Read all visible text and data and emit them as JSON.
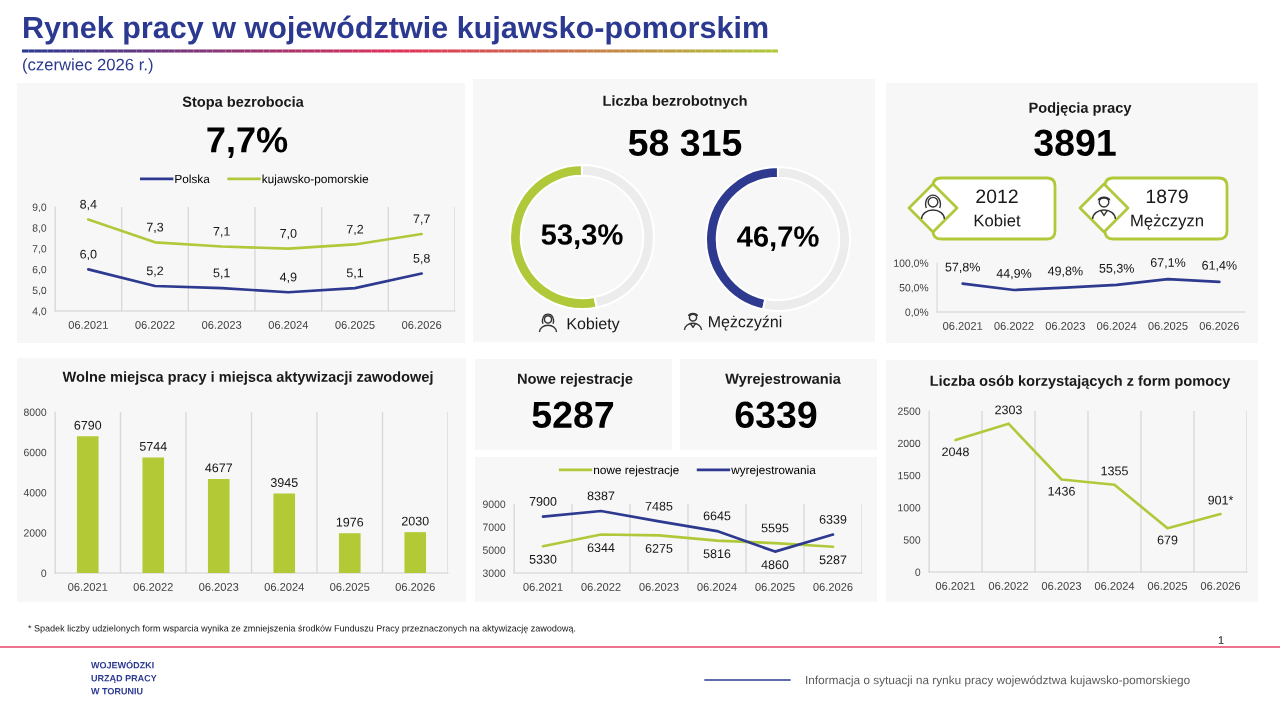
{
  "chart_data": [
    {
      "type": "other",
      "title": "Rynek pracy w województwie kujawsko-pomorskim",
      "subtitle": "(czerwiec 2026 r.)",
      "annotations": [
        "* Spadek liczby udzielonych form wsparcia wynika ze zmniejszenia środków Funduszu Pracy przeznaczonych na aktywizację zawodową.",
        "1",
        "WOJEWÓDZKI",
        "URZĄD PRACY",
        "W TORUNIU",
        "Informacja o sytuacji na rynku pracy województwa kujawsko-pomorskiego"
      ]
    },
    {
      "type": "line",
      "title": "Stopa bezrobocia",
      "subtitle": "7,7%",
      "categories": [
        "06.2021",
        "06.2022",
        "06.2023",
        "06.2024",
        "06.2025",
        "06.2026"
      ],
      "series": [
        {
          "name": "Polska",
          "color": "#2e3a8f",
          "values": [
            6.0,
            5.2,
            5.1,
            4.9,
            5.1,
            5.8
          ],
          "value_labels": [
            "6,0",
            "5,2",
            "5,1",
            "4,9",
            "5,1",
            "5,8"
          ]
        },
        {
          "name": "kujawsko-pomorskie",
          "color": "#b0c93a",
          "values": [
            8.4,
            7.3,
            7.1,
            7.0,
            7.2,
            7.7
          ],
          "value_labels": [
            "8,4",
            "7,3",
            "7,1",
            "7,0",
            "7,2",
            "7,7"
          ]
        }
      ],
      "ylim": [
        4,
        9
      ],
      "yticks": [
        {
          "value": 4,
          "label": "4,0"
        },
        {
          "value": 5,
          "label": "5,0"
        },
        {
          "value": 6,
          "label": "6,0"
        },
        {
          "value": 7,
          "label": "7,0"
        },
        {
          "value": 8,
          "label": "8,0"
        },
        {
          "value": 9,
          "label": "9,0"
        }
      ],
      "grid": "x",
      "legend": "top"
    },
    {
      "type": "other",
      "title": "Liczba bezrobotnych",
      "subtitle": "58 315"
    },
    {
      "type": "donut",
      "categories": [
        "Kobiety",
        null
      ],
      "values": [
        53.3,
        46.7
      ],
      "colors": [
        "#b0c93a",
        "#ececec"
      ],
      "value_labels": [
        "53,3%",
        null
      ]
    },
    {
      "type": "donut",
      "categories": [
        "Mężczyźni",
        null
      ],
      "values": [
        46.7,
        53.3
      ],
      "colors": [
        "#2e3a8f",
        "#ececec"
      ],
      "value_labels": [
        "46,7%",
        null
      ]
    },
    {
      "type": "line",
      "title": "Podjęcia pracy",
      "subtitle": "3891",
      "annotations": [
        "2012",
        "Kobiet",
        "1879",
        "Mężczyzn"
      ],
      "categories": [
        "06.2021",
        "06.2022",
        "06.2023",
        "06.2024",
        "06.2025",
        "06.2026"
      ],
      "values": [
        57.8,
        44.9,
        49.8,
        55.3,
        67.1,
        61.4
      ],
      "value_labels": [
        "57,8%",
        "44,9%",
        "49,8%",
        "55,3%",
        "67,1%",
        "61,4%"
      ],
      "color": "#2e3a8f",
      "ylim": [
        0,
        100
      ],
      "yticks": [
        {
          "value": 0,
          "label": "0,0%"
        },
        {
          "value": 50,
          "label": "50,0%"
        },
        {
          "value": 100,
          "label": "100,0%"
        }
      ]
    },
    {
      "type": "bar",
      "title": "Wolne miejsca pracy i miejsca aktywizacji zawodowej",
      "categories": [
        "06.2021",
        "06.2022",
        "06.2023",
        "06.2024",
        "06.2025",
        "06.2026"
      ],
      "values": [
        6790,
        5744,
        4677,
        3945,
        1976,
        2030
      ],
      "color": "#b3c935",
      "ylim": [
        0,
        8000
      ],
      "yticks": [
        0,
        2000,
        4000,
        6000,
        8000
      ],
      "grid": "x",
      "data_labels": true
    },
    {
      "type": "other",
      "title": "Nowe rejestracje",
      "subtitle": "5287"
    },
    {
      "type": "other",
      "title": "Wyrejestrowania",
      "subtitle": "6339"
    },
    {
      "type": "line",
      "categories": [
        "06.2021",
        "06.2022",
        "06.2023",
        "06.2024",
        "06.2025",
        "06.2026"
      ],
      "series": [
        {
          "name": "nowe rejestracje",
          "color": "#b0c93a",
          "values": [
            5330,
            6344,
            6275,
            5816,
            5595,
            5287
          ]
        },
        {
          "name": "wyrejestrowania",
          "color": "#2e3a8f",
          "values": [
            7900,
            8387,
            7485,
            6645,
            4860,
            6339
          ]
        }
      ],
      "ylim": [
        3000,
        9000
      ],
      "yticks": [
        3000,
        5000,
        7000,
        9000
      ],
      "grid": "x",
      "legend": "top",
      "data_labels": true
    },
    {
      "type": "line",
      "title": "Liczba osób korzystających z form pomocy",
      "categories": [
        "06.2021",
        "06.2022",
        "06.2023",
        "06.2024",
        "06.2025",
        "06.2026"
      ],
      "values": [
        2048,
        2303,
        1436,
        1355,
        679,
        901
      ],
      "value_labels": [
        "2048",
        "2303",
        "1436",
        "1355",
        "679",
        "901*"
      ],
      "color": "#b0c93a",
      "ylim": [
        0,
        2500
      ],
      "yticks": [
        0,
        500,
        1000,
        1500,
        2000,
        2500
      ],
      "grid": "x"
    }
  ]
}
